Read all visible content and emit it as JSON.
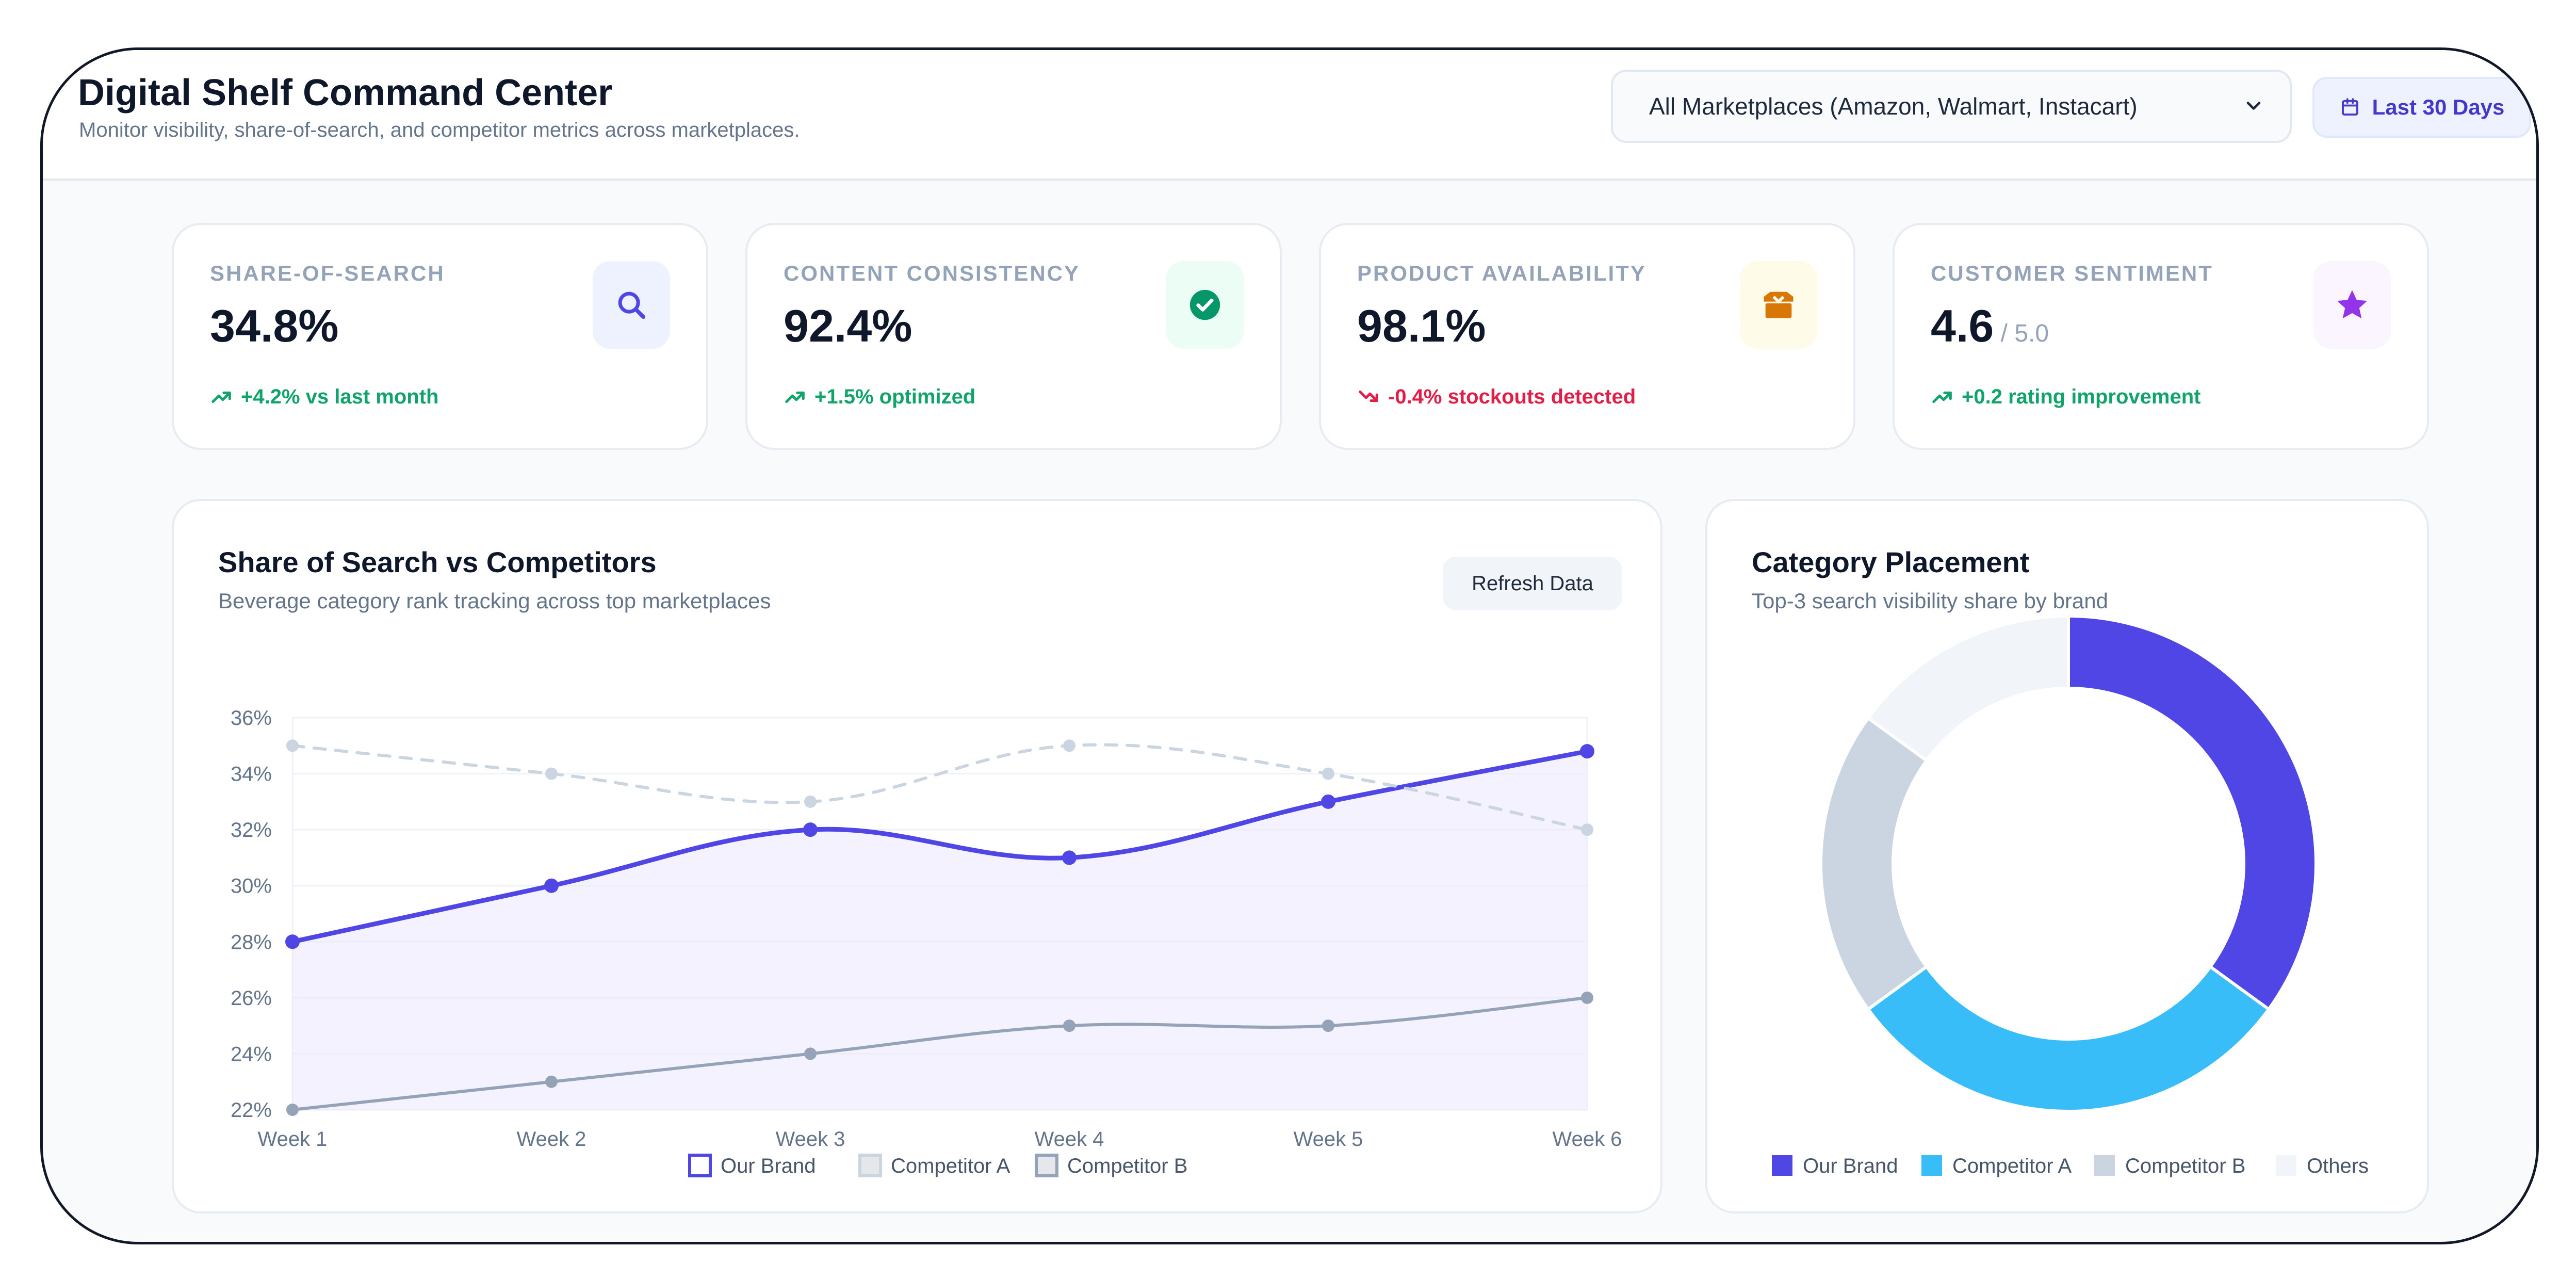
{
  "header": {
    "title": "Digital Shelf Command Center",
    "subtitle": "Monitor visibility, share-of-search, and competitor metrics across marketplaces.",
    "marketplace_select": "All Marketplaces (Amazon, Walmart, Instacart)",
    "date_range": "Last 30 Days"
  },
  "kpis": [
    {
      "label": "SHARE-OF-SEARCH",
      "value": "34.8%",
      "suffix": "",
      "trend": "+4.2% vs last month",
      "direction": "up",
      "icon": "search-icon",
      "color": "#10a36a",
      "icon_bg": "#eef2ff",
      "icon_color": "#4f46e5"
    },
    {
      "label": "CONTENT CONSISTENCY",
      "value": "92.4%",
      "suffix": "",
      "trend": "+1.5% optimized",
      "direction": "up",
      "icon": "check-circle-icon",
      "color": "#10a36a",
      "icon_bg": "#ecfdf5",
      "icon_color": "#059669"
    },
    {
      "label": "PRODUCT AVAILABILITY",
      "value": "98.1%",
      "suffix": "",
      "trend": "-0.4% stockouts detected",
      "direction": "down",
      "icon": "box-icon",
      "color": "#e11d48",
      "icon_bg": "#fefce8",
      "icon_color": "#d97706"
    },
    {
      "label": "CUSTOMER SENTIMENT",
      "value": "4.6",
      "suffix": " / 5.0",
      "trend": "+0.2 rating improvement",
      "direction": "up",
      "icon": "star-icon",
      "color": "#10a36a",
      "icon_bg": "#faf5ff",
      "icon_color": "#9333ea"
    }
  ],
  "line_card": {
    "title": "Share of Search vs Competitors",
    "subtitle": "Beverage category rank tracking across top marketplaces",
    "refresh_label": "Refresh Data"
  },
  "donut_card": {
    "title": "Category Placement",
    "subtitle": "Top-3 search visibility share by brand"
  },
  "chart_data": [
    {
      "type": "line",
      "x": [
        "Week 1",
        "Week 2",
        "Week 3",
        "Week 4",
        "Week 5",
        "Week 6"
      ],
      "y_ticks": [
        "22%",
        "24%",
        "26%",
        "28%",
        "30%",
        "32%",
        "34%",
        "36%"
      ],
      "ylim": [
        22,
        36
      ],
      "grid": true,
      "legend_position": "bottom",
      "series": [
        {
          "name": "Our Brand",
          "values": [
            28,
            30,
            32,
            31,
            33,
            34.8
          ],
          "color": "#4f46e5",
          "style": "solid",
          "fill": true
        },
        {
          "name": "Competitor A",
          "values": [
            35,
            34,
            33,
            35,
            34,
            32
          ],
          "color": "#cbd5e1",
          "style": "dashed",
          "fill": false
        },
        {
          "name": "Competitor B",
          "values": [
            22,
            23,
            24,
            25,
            25,
            26
          ],
          "color": "#94a3b8",
          "style": "solid",
          "fill": false
        }
      ]
    },
    {
      "type": "pie",
      "donut": true,
      "legend_position": "bottom",
      "categories": [
        "Our Brand",
        "Competitor A",
        "Competitor B",
        "Others"
      ],
      "values": [
        35,
        30,
        20,
        15
      ],
      "colors": [
        "#4f46e5",
        "#38bdf8",
        "#cbd5e1",
        "#f1f5f9"
      ]
    }
  ]
}
